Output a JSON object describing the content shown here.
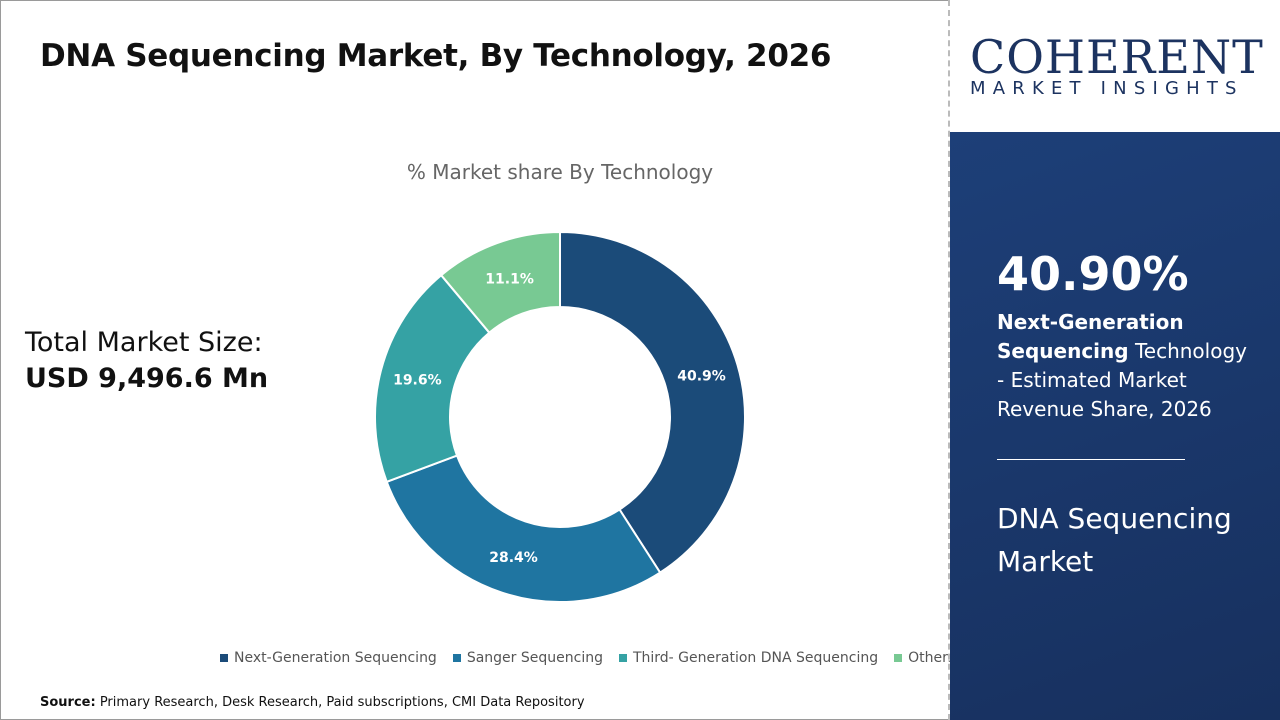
{
  "header": {
    "title": "DNA Sequencing Market, By Technology, 2026"
  },
  "total": {
    "label": "Total Market Size:",
    "value": "USD 9,496.6 Mn"
  },
  "logo": {
    "name": "COHERENT",
    "tagline": "MARKET INSIGHTS"
  },
  "panel": {
    "percent": "40.90%",
    "highlight": "Next-Generation Sequencing",
    "desc_rest": " Technology - Estimated Market Revenue Share, 2026",
    "market": "DNA Sequencing Market"
  },
  "source": {
    "label": "Source:",
    "text": " Primary Research, Desk Research, Paid subscriptions, CMI Data Repository"
  },
  "chart_data": {
    "type": "pie",
    "donut": true,
    "title": "% Market share By Technology",
    "categories": [
      "Next-Generation Sequencing",
      "Sanger Sequencing",
      "Third- Generation DNA Sequencing",
      "Others"
    ],
    "values": [
      40.9,
      28.4,
      19.6,
      11.1
    ],
    "labels": [
      "40.9%",
      "28.4%",
      "19.6%",
      "11.1%"
    ],
    "colors": [
      "#1b4b79",
      "#1f75a1",
      "#35a2a4",
      "#78c993"
    ],
    "legend": "bottom"
  }
}
